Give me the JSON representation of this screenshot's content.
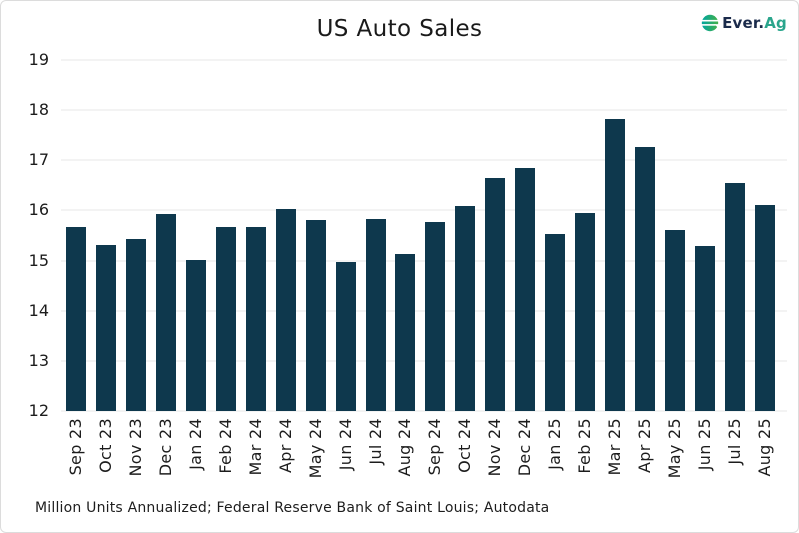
{
  "logo": {
    "ever": "Ever.",
    "ag": "Ag",
    "ever_color": "#1B2B4B",
    "ag_color": "#2AA58C",
    "icon_gradient_start": "#00A5A0",
    "icon_gradient_end": "#43B049"
  },
  "footnote": "Million Units Annualized; Federal Reserve Bank of Saint Louis; Autodata",
  "chart_data": {
    "type": "bar",
    "title": "US Auto Sales",
    "categories": [
      "Sep 23",
      "Oct 23",
      "Nov 23",
      "Dec 23",
      "Jan 24",
      "Feb 24",
      "Mar 24",
      "Apr 24",
      "May 24",
      "Jun 24",
      "Jul 24",
      "Aug 24",
      "Sep 24",
      "Oct 24",
      "Nov 24",
      "Dec 24",
      "Jan 25",
      "Feb 25",
      "Mar 25",
      "Apr 25",
      "May 25",
      "Jun 25",
      "Jul 25",
      "Aug 25"
    ],
    "values": [
      15.67,
      15.32,
      15.44,
      15.92,
      15.01,
      15.66,
      15.66,
      16.02,
      15.81,
      14.97,
      15.82,
      15.13,
      15.77,
      16.09,
      16.65,
      16.85,
      15.53,
      15.95,
      17.82,
      17.27,
      15.61,
      15.3,
      16.54,
      16.1
    ],
    "xlabel": "",
    "ylabel": "",
    "ylim": [
      12,
      19
    ],
    "yticks": [
      12,
      13,
      14,
      15,
      16,
      17,
      18,
      19
    ],
    "grid": true,
    "grid_color": "#E7E7E7",
    "bar_color": "#0E384D",
    "legend": "none",
    "x_tick_rotation_degrees": 90
  }
}
